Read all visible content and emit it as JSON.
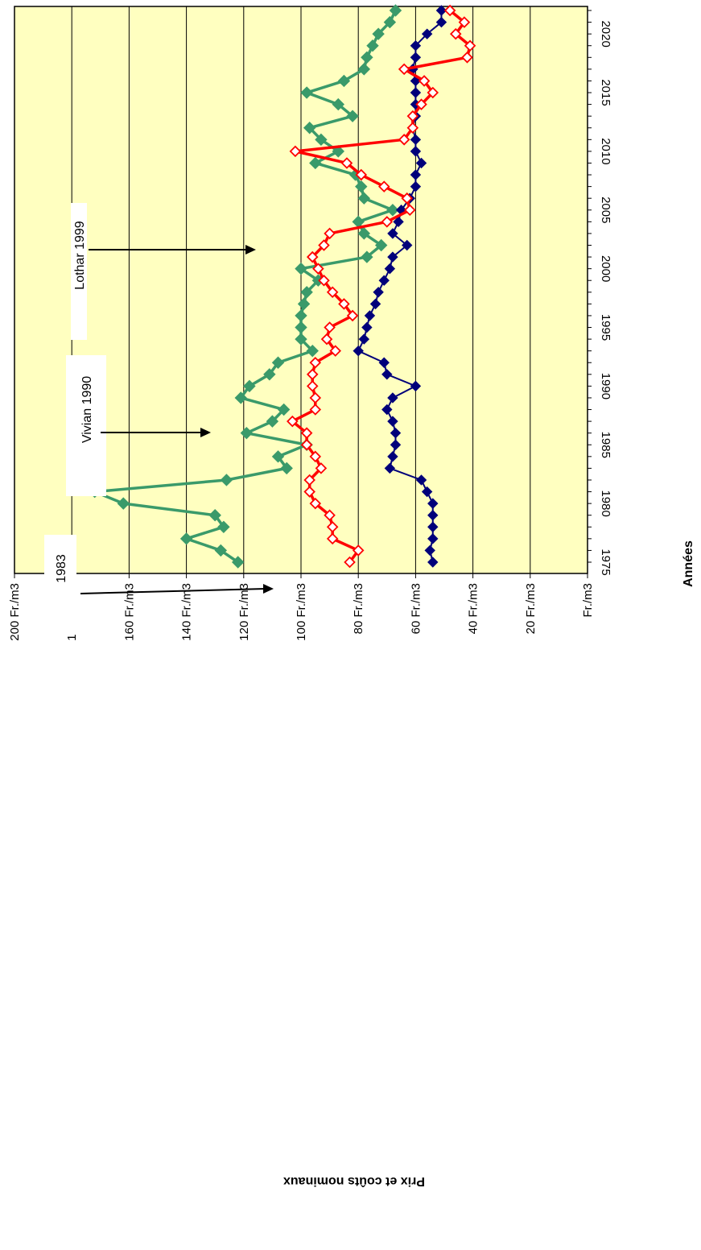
{
  "chart_data": {
    "type": "line",
    "title": "",
    "xlabel": "Années",
    "ylabel": "Prix et coûts nominaux",
    "x_ticks": [
      "1975",
      "1980",
      "1985",
      "1990",
      "1995",
      "2000",
      "2005",
      "2010",
      "2015",
      "2020"
    ],
    "y_ticks": [
      "Fr./m3",
      "20 Fr./m3",
      "40 Fr./m3",
      "60 Fr./m3",
      "80 Fr./m3",
      "100 Fr./m3",
      "120 Fr./m3",
      "140 Fr./m3",
      "160 Fr./m3",
      "180 Fr./m3",
      "200 Fr./m3"
    ],
    "ylim": [
      0,
      200
    ],
    "xlim": [
      1974,
      2021.5
    ],
    "grid": "horizontal",
    "plot_background": "#ffffc0",
    "series": [
      {
        "color": "#3a9a6a",
        "marker": "filled-diamond",
        "x": [
          1975,
          1976,
          1977,
          1978,
          1979,
          1980,
          1981,
          1982,
          1983,
          1984,
          1985,
          1986,
          1987,
          1988,
          1989,
          1990,
          1991,
          1992,
          1993,
          1994,
          1995,
          1996,
          1997,
          1998,
          1999,
          2000,
          2001,
          2002,
          2003,
          2004,
          2005,
          2006,
          2007,
          2008,
          2009,
          2010,
          2011,
          2012,
          2013,
          2014,
          2015,
          2016,
          2017,
          2018,
          2019,
          2020,
          2021,
          2022
        ],
        "values": [
          122,
          128,
          140,
          127,
          130,
          162,
          172,
          126,
          105,
          108,
          98,
          119,
          110,
          106,
          121,
          118,
          111,
          108,
          96,
          100,
          100,
          100,
          99,
          98,
          94,
          100,
          77,
          72,
          78,
          80,
          68,
          78,
          79,
          81,
          95,
          87,
          93,
          97,
          82,
          87,
          98,
          85,
          78,
          77,
          75,
          73,
          69,
          67
        ]
      },
      {
        "color": "#00007a",
        "marker": "filled-diamond",
        "x": [
          1975,
          1976,
          1977,
          1978,
          1979,
          1980,
          1981,
          1982,
          1983,
          1984,
          1985,
          1986,
          1987,
          1988,
          1989,
          1990,
          1991,
          1992,
          1993,
          1994,
          1995,
          1996,
          1997,
          1998,
          1999,
          2000,
          2001,
          2002,
          2003,
          2004,
          2005,
          2006,
          2007,
          2008,
          2009,
          2010,
          2011,
          2012,
          2013,
          2014,
          2015,
          2016,
          2017,
          2018,
          2019,
          2020,
          2021,
          2022
        ],
        "values": [
          54,
          55,
          54,
          54,
          54,
          54,
          56,
          58,
          69,
          68,
          67,
          67,
          68,
          70,
          68,
          60,
          70,
          71,
          80,
          78,
          77,
          76,
          74,
          73,
          71,
          69,
          68,
          63,
          68,
          66,
          65,
          62,
          60,
          60,
          58,
          60,
          60,
          61,
          60,
          60,
          60,
          60,
          61,
          60,
          60,
          56,
          51,
          51
        ]
      },
      {
        "color": "#ff0000",
        "marker": "hollow-diamond",
        "x": [
          1975,
          1976,
          1977,
          1978,
          1979,
          1980,
          1981,
          1982,
          1983,
          1984,
          1985,
          1986,
          1987,
          1988,
          1989,
          1990,
          1991,
          1992,
          1993,
          1994,
          1995,
          1996,
          1997,
          1998,
          1999,
          2000,
          2001,
          2002,
          2003,
          2004,
          2005,
          2006,
          2007,
          2008,
          2009,
          2010,
          2011,
          2012,
          2013,
          2014,
          2015,
          2016,
          2017,
          2018,
          2019,
          2020,
          2021,
          2022
        ],
        "values": [
          83,
          80,
          89,
          89,
          90,
          95,
          97,
          97,
          93,
          95,
          98,
          98,
          103,
          95,
          95,
          96,
          96,
          95,
          88,
          91,
          90,
          82,
          85,
          89,
          92,
          94,
          96,
          92,
          90,
          70,
          62,
          63,
          71,
          79,
          84,
          102,
          64,
          61,
          61,
          58,
          54,
          57,
          64,
          42,
          41,
          46,
          43,
          48
        ]
      }
    ],
    "annotations": [
      {
        "text": "1983",
        "arrow_to_year": 1984
      },
      {
        "text": "Vivian 1990",
        "arrow_to_year": 1990
      },
      {
        "text": "Lothar 1999",
        "arrow_to_year": 1999
      }
    ]
  }
}
